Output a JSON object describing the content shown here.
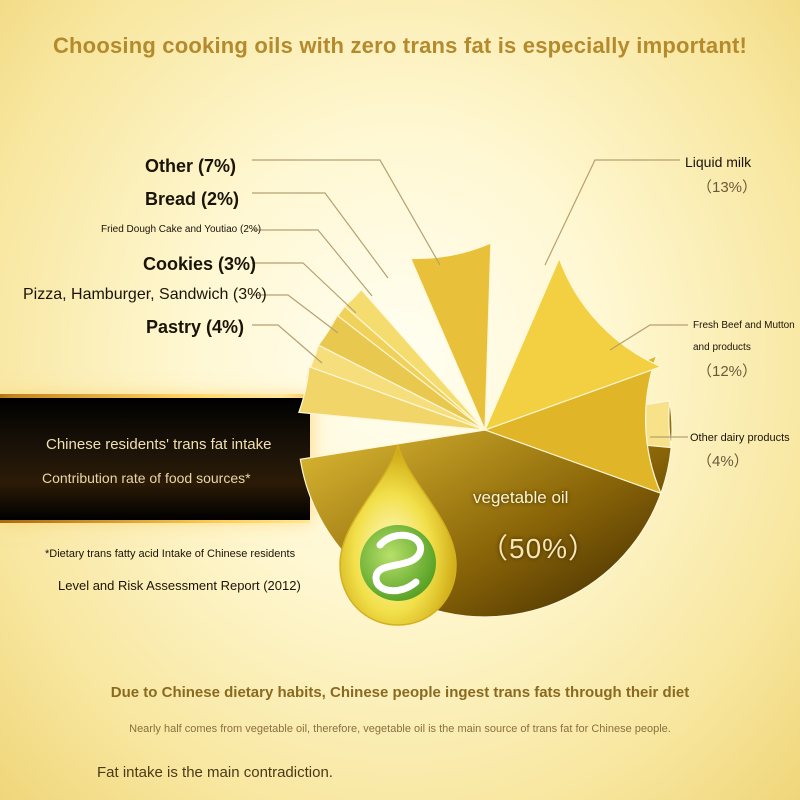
{
  "headline": "Choosing cooking oils with zero trans fat is especially important!",
  "chart_data": {
    "type": "pie",
    "title": "Chinese residents' trans fat intake",
    "subtitle": "Contribution rate of food sources*",
    "slices": [
      {
        "label": "vegetable oil",
        "pct_text": "（50%）",
        "value": 50,
        "color": "#c99a10"
      },
      {
        "label": "Other dairy products",
        "pct_text": "（4%）",
        "value": 4,
        "color": "#f7e28a"
      },
      {
        "label": "Fresh Beef and Mutton and products",
        "pct_text": "（12%）",
        "value": 12,
        "color": "#e0b527"
      },
      {
        "label": "Liquid milk",
        "pct_text": "（13%）",
        "value": 13,
        "color": "#f3cf42"
      },
      {
        "label": "Other",
        "pct_text": "(7%)",
        "value": 7,
        "color": "#e8c03a"
      },
      {
        "label": "Bread",
        "pct_text": "(2%)",
        "value": 2,
        "color": "#f5dc6e"
      },
      {
        "label": "Fried Dough Cake and Youtiao",
        "pct_text": "(2%)",
        "value": 2,
        "color": "#f0d25a"
      },
      {
        "label": "Cookies",
        "pct_text": "(3%)",
        "value": 3,
        "color": "#e9c850"
      },
      {
        "label": "Pizza, Hamburger, Sandwich",
        "pct_text": "(3%)",
        "value": 3,
        "color": "#f6de7c"
      },
      {
        "label": "Pastry",
        "pct_text": "(4%)",
        "value": 4,
        "color": "#f2d568"
      }
    ]
  },
  "labels": {
    "other": "Other (7%)",
    "bread": "Bread (2%)",
    "fried": "Fried Dough Cake and Youtiao (2%)",
    "cookies": "Cookies (3%)",
    "pizza": "Pizza, Hamburger, Sandwich (3%)",
    "pastry": "Pastry (4%)",
    "milk": "Liquid milk",
    "milk_pct": "（13%）",
    "beef_1": "Fresh Beef and Mutton",
    "beef_2": "and products",
    "beef_pct": "（12%）",
    "dairy": "Other dairy products",
    "dairy_pct": "（4%）",
    "veg": "vegetable oil",
    "veg_pct": "（50%）"
  },
  "band": {
    "title": "Chinese residents' trans fat intake",
    "subtitle": "Contribution rate of food sources*"
  },
  "notes": {
    "line1": "*Dietary trans fatty acid Intake of Chinese residents",
    "line2": "Level and Risk Assessment Report (2012)"
  },
  "bottom": {
    "line1": "Due to Chinese dietary habits, Chinese people ingest trans fats through their diet",
    "line2": "Nearly half comes from vegetable oil, therefore, vegetable oil is the main source of trans fat for Chinese people.",
    "line3": "Fat intake is the main contradiction."
  },
  "icon": "oil-drop-leaf-logo"
}
